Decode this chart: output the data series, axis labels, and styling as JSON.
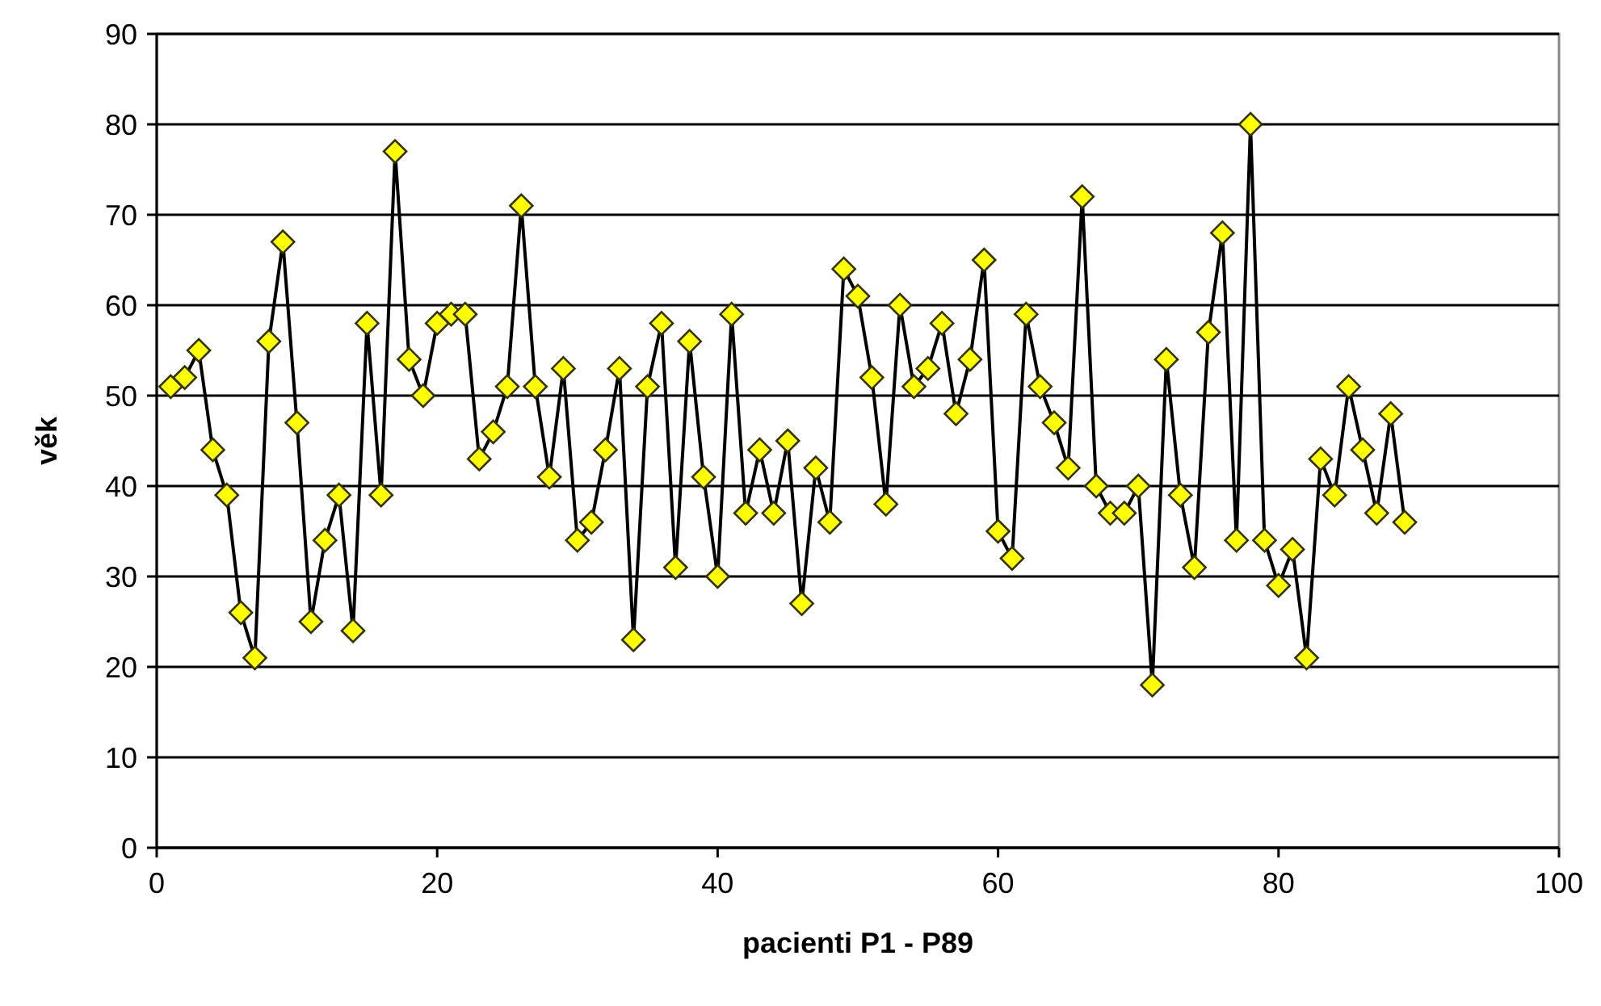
{
  "chart_data": {
    "type": "line",
    "xlabel": "pacienti P1 - P89",
    "ylabel": "věk",
    "x": [
      1,
      2,
      3,
      4,
      5,
      6,
      7,
      8,
      9,
      10,
      11,
      12,
      13,
      14,
      15,
      16,
      17,
      18,
      19,
      20,
      21,
      22,
      23,
      24,
      25,
      26,
      27,
      28,
      29,
      30,
      31,
      32,
      33,
      34,
      35,
      36,
      37,
      38,
      39,
      40,
      41,
      42,
      43,
      44,
      45,
      46,
      47,
      48,
      49,
      50,
      51,
      52,
      53,
      54,
      55,
      56,
      57,
      58,
      59,
      60,
      61,
      62,
      63,
      64,
      65,
      66,
      67,
      68,
      69,
      70,
      71,
      72,
      73,
      74,
      75,
      76,
      77,
      78,
      79,
      80,
      81,
      82,
      83,
      84,
      85,
      86,
      87,
      88,
      89
    ],
    "series": [
      {
        "color": "#ffff00",
        "values": [
          51,
          52,
          55,
          44,
          39,
          26,
          21,
          56,
          67,
          47,
          25,
          34,
          39,
          24,
          58,
          39,
          77,
          54,
          50,
          58,
          59,
          59,
          43,
          46,
          51,
          71,
          51,
          41,
          53,
          34,
          36,
          44,
          53,
          23,
          51,
          58,
          31,
          56,
          41,
          30,
          59,
          37,
          44,
          37,
          45,
          27,
          42,
          36,
          64,
          61,
          52,
          38,
          60,
          51,
          53,
          58,
          48,
          54,
          65,
          35,
          32,
          59,
          51,
          47,
          42,
          72,
          40,
          37,
          37,
          40,
          18,
          54,
          39,
          31,
          57,
          68,
          34,
          80,
          34,
          29,
          33,
          21,
          43,
          39,
          51,
          44,
          37,
          48,
          36
        ]
      }
    ],
    "xlim": [
      0,
      100
    ],
    "xticks": [
      0,
      20,
      40,
      60,
      80,
      100
    ],
    "ylim": [
      0,
      90
    ],
    "yticks": [
      0,
      10,
      20,
      30,
      40,
      50,
      60,
      70,
      80,
      90
    ],
    "grid": "y",
    "marker": "diamond",
    "line_style": "solid"
  }
}
